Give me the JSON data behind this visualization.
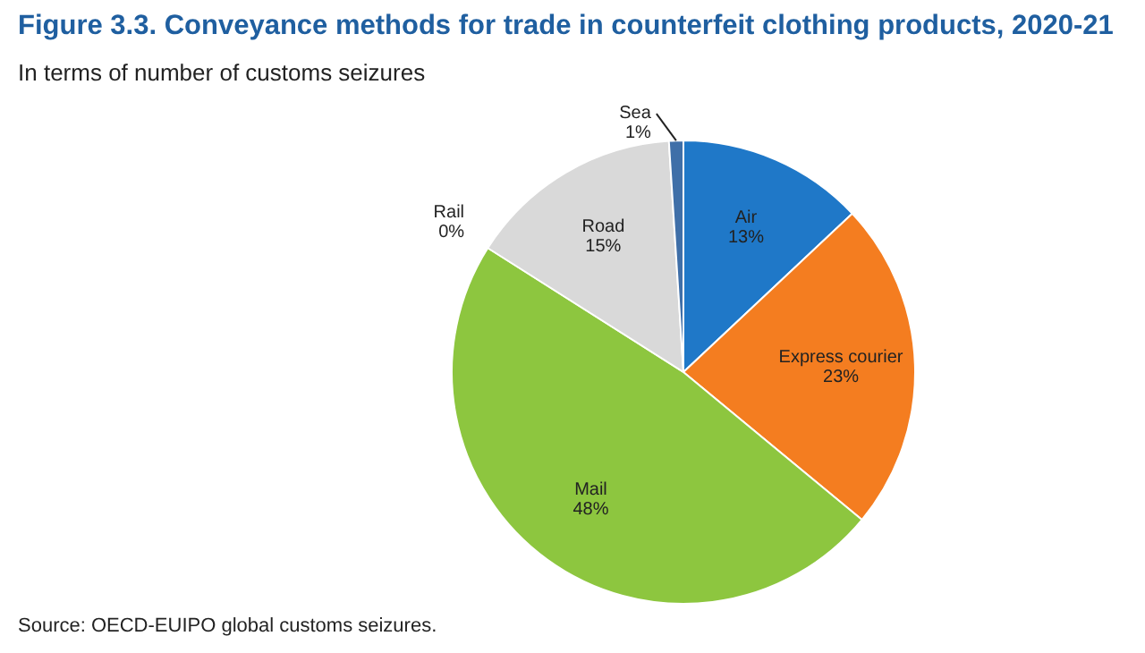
{
  "chart_data": {
    "type": "pie",
    "title": "Figure 3.3. Conveyance methods for trade in counterfeit clothing products, 2020-21",
    "subtitle": "In terms of number of customs seizures",
    "categories": [
      "Air",
      "Express courier",
      "Mail",
      "Rail",
      "Road",
      "Sea"
    ],
    "values": [
      13,
      23,
      48,
      0,
      15,
      1
    ],
    "value_labels": [
      "13%",
      "23%",
      "48%",
      "0%",
      "15%",
      "1%"
    ],
    "colors": [
      "#1f78c8",
      "#f47d20",
      "#8dc63f",
      "#7f7f7f",
      "#d9d9d9",
      "#3f6fa8"
    ],
    "annotations": [
      "Source: OECD-EUIPO global customs seizures."
    ]
  }
}
